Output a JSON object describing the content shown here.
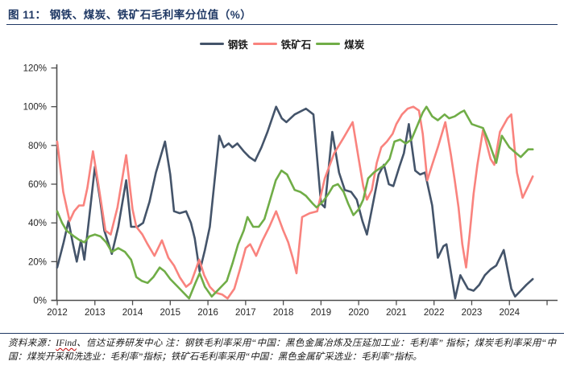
{
  "title": "图 11： 钢铁、煤炭、铁矿石毛利率分位值（%）",
  "legend": [
    {
      "id": "steel",
      "label": "钢铁",
      "color": "#44546a"
    },
    {
      "id": "iron-ore",
      "label": "铁矿石",
      "color": "#f9837e"
    },
    {
      "id": "coal",
      "label": "煤炭",
      "color": "#70ad47"
    }
  ],
  "footer": {
    "prefix": "资料来源：",
    "link": "IFind",
    "rest": "、信达证券研发中心  注：钢铁毛利率采用“中国：黑色金属冶炼及压延加工业：毛利率” 指标；煤炭毛利率采用“中国：煤炭开采和洗选业：毛利率”指标；铁矿石毛利率采用“中国：黑色金属矿采选业：毛利率”指标。"
  },
  "chart_data": {
    "type": "line",
    "title": "图 11： 钢铁、煤炭、铁矿石毛利率分位值（%）",
    "xlabel": "",
    "ylabel": "",
    "ylim": [
      0,
      120
    ],
    "yticks": [
      "0%",
      "20%",
      "40%",
      "60%",
      "80%",
      "100%",
      "120%"
    ],
    "ytick_values": [
      0,
      20,
      40,
      60,
      80,
      100,
      120
    ],
    "xticks": [
      2012,
      2013,
      2014,
      2015,
      2016,
      2017,
      2018,
      2019,
      2020,
      2021,
      2022,
      2023,
      2024
    ],
    "x_unit": "year (monthly series)",
    "grid": false,
    "legend_position": "top-center",
    "axis_color": "#4d4d4d",
    "series": [
      {
        "name": "钢铁",
        "color": "#44546a",
        "points": [
          [
            2012.0,
            17
          ],
          [
            2012.17,
            30
          ],
          [
            2012.3,
            41
          ],
          [
            2012.42,
            29
          ],
          [
            2012.52,
            20
          ],
          [
            2012.63,
            31
          ],
          [
            2012.72,
            21
          ],
          [
            2012.85,
            43
          ],
          [
            2013.0,
            69
          ],
          [
            2013.13,
            53
          ],
          [
            2013.25,
            36
          ],
          [
            2013.45,
            24
          ],
          [
            2013.62,
            38
          ],
          [
            2013.83,
            62
          ],
          [
            2013.96,
            38
          ],
          [
            2014.13,
            38
          ],
          [
            2014.28,
            40
          ],
          [
            2014.45,
            51
          ],
          [
            2014.62,
            66
          ],
          [
            2014.86,
            82
          ],
          [
            2015.0,
            65
          ],
          [
            2015.1,
            46
          ],
          [
            2015.25,
            45
          ],
          [
            2015.42,
            46
          ],
          [
            2015.55,
            40
          ],
          [
            2015.65,
            32
          ],
          [
            2015.78,
            15
          ],
          [
            2015.92,
            26
          ],
          [
            2016.05,
            38
          ],
          [
            2016.3,
            85
          ],
          [
            2016.42,
            79
          ],
          [
            2016.55,
            81
          ],
          [
            2016.65,
            79
          ],
          [
            2016.78,
            81
          ],
          [
            2016.95,
            77
          ],
          [
            2017.1,
            74
          ],
          [
            2017.25,
            72
          ],
          [
            2017.42,
            79
          ],
          [
            2017.58,
            87
          ],
          [
            2017.81,
            100
          ],
          [
            2017.96,
            94
          ],
          [
            2018.08,
            92
          ],
          [
            2018.3,
            96
          ],
          [
            2018.6,
            99
          ],
          [
            2018.8,
            96
          ],
          [
            2019.0,
            50
          ],
          [
            2019.1,
            48
          ],
          [
            2019.3,
            87
          ],
          [
            2019.48,
            66
          ],
          [
            2019.63,
            57
          ],
          [
            2019.8,
            56
          ],
          [
            2019.95,
            52
          ],
          [
            2020.1,
            41
          ],
          [
            2020.22,
            34
          ],
          [
            2020.38,
            50
          ],
          [
            2020.53,
            65
          ],
          [
            2020.67,
            70
          ],
          [
            2020.8,
            60
          ],
          [
            2020.92,
            59
          ],
          [
            2021.08,
            69
          ],
          [
            2021.2,
            76
          ],
          [
            2021.33,
            91
          ],
          [
            2021.5,
            67
          ],
          [
            2021.63,
            65
          ],
          [
            2021.76,
            66
          ],
          [
            2021.95,
            49
          ],
          [
            2022.1,
            22
          ],
          [
            2022.25,
            28
          ],
          [
            2022.33,
            29
          ],
          [
            2022.56,
            1
          ],
          [
            2022.7,
            13
          ],
          [
            2022.9,
            6
          ],
          [
            2023.05,
            5
          ],
          [
            2023.2,
            8
          ],
          [
            2023.35,
            13
          ],
          [
            2023.5,
            16
          ],
          [
            2023.65,
            18
          ],
          [
            2023.85,
            26
          ],
          [
            2024.05,
            6
          ],
          [
            2024.15,
            2
          ],
          [
            2024.3,
            5
          ],
          [
            2024.45,
            8
          ],
          [
            2024.62,
            11
          ]
        ]
      },
      {
        "name": "铁矿石",
        "color": "#f9837e",
        "points": [
          [
            2012.0,
            82
          ],
          [
            2012.16,
            56
          ],
          [
            2012.33,
            41
          ],
          [
            2012.45,
            46
          ],
          [
            2012.58,
            49
          ],
          [
            2012.7,
            49
          ],
          [
            2012.8,
            58
          ],
          [
            2012.95,
            77
          ],
          [
            2013.1,
            59
          ],
          [
            2013.28,
            36
          ],
          [
            2013.42,
            34
          ],
          [
            2013.6,
            48
          ],
          [
            2013.83,
            75
          ],
          [
            2014.0,
            47
          ],
          [
            2014.1,
            38
          ],
          [
            2014.26,
            34
          ],
          [
            2014.4,
            29
          ],
          [
            2014.58,
            23
          ],
          [
            2014.78,
            31
          ],
          [
            2014.95,
            22
          ],
          [
            2015.1,
            18
          ],
          [
            2015.25,
            12
          ],
          [
            2015.42,
            7
          ],
          [
            2015.55,
            9
          ],
          [
            2015.77,
            21
          ],
          [
            2015.9,
            13
          ],
          [
            2016.05,
            7
          ],
          [
            2016.2,
            4
          ],
          [
            2016.38,
            3
          ],
          [
            2016.52,
            1
          ],
          [
            2016.7,
            6
          ],
          [
            2016.85,
            16
          ],
          [
            2017.0,
            27
          ],
          [
            2017.12,
            29
          ],
          [
            2017.28,
            23
          ],
          [
            2017.45,
            31
          ],
          [
            2017.63,
            38
          ],
          [
            2017.81,
            46
          ],
          [
            2018.0,
            36
          ],
          [
            2018.13,
            30
          ],
          [
            2018.25,
            22
          ],
          [
            2018.35,
            14
          ],
          [
            2018.5,
            43
          ],
          [
            2018.7,
            45
          ],
          [
            2018.9,
            46
          ],
          [
            2019.1,
            63
          ],
          [
            2019.35,
            76
          ],
          [
            2019.6,
            84
          ],
          [
            2019.84,
            92
          ],
          [
            2020.0,
            73
          ],
          [
            2020.12,
            59
          ],
          [
            2020.22,
            52
          ],
          [
            2020.35,
            57
          ],
          [
            2020.48,
            71
          ],
          [
            2020.6,
            79
          ],
          [
            2020.75,
            82
          ],
          [
            2020.9,
            86
          ],
          [
            2021.0,
            91
          ],
          [
            2021.15,
            96
          ],
          [
            2021.3,
            99
          ],
          [
            2021.45,
            100
          ],
          [
            2021.6,
            98
          ],
          [
            2021.7,
            86
          ],
          [
            2021.82,
            62
          ],
          [
            2021.95,
            70
          ],
          [
            2022.1,
            79
          ],
          [
            2022.3,
            92
          ],
          [
            2022.45,
            75
          ],
          [
            2022.55,
            62
          ],
          [
            2022.65,
            48
          ],
          [
            2022.75,
            29
          ],
          [
            2022.85,
            17
          ],
          [
            2022.95,
            35
          ],
          [
            2023.05,
            55
          ],
          [
            2023.15,
            70
          ],
          [
            2023.3,
            88
          ],
          [
            2023.5,
            73
          ],
          [
            2023.6,
            70
          ],
          [
            2023.75,
            87
          ],
          [
            2023.95,
            94
          ],
          [
            2024.05,
            96
          ],
          [
            2024.2,
            66
          ],
          [
            2024.35,
            53
          ],
          [
            2024.5,
            59
          ],
          [
            2024.62,
            64
          ]
        ]
      },
      {
        "name": "煤炭",
        "color": "#70ad47",
        "points": [
          [
            2012.0,
            46
          ],
          [
            2012.13,
            40
          ],
          [
            2012.25,
            36
          ],
          [
            2012.45,
            33
          ],
          [
            2012.6,
            31
          ],
          [
            2012.72,
            30
          ],
          [
            2012.85,
            33
          ],
          [
            2013.0,
            34
          ],
          [
            2013.15,
            33
          ],
          [
            2013.3,
            30
          ],
          [
            2013.45,
            25
          ],
          [
            2013.62,
            27
          ],
          [
            2013.8,
            25
          ],
          [
            2013.96,
            21
          ],
          [
            2014.1,
            12
          ],
          [
            2014.25,
            10
          ],
          [
            2014.4,
            9
          ],
          [
            2014.55,
            12
          ],
          [
            2014.72,
            17
          ],
          [
            2014.85,
            15
          ],
          [
            2015.0,
            11
          ],
          [
            2015.2,
            7
          ],
          [
            2015.35,
            4
          ],
          [
            2015.5,
            1
          ],
          [
            2015.67,
            9
          ],
          [
            2015.78,
            14
          ],
          [
            2015.92,
            7
          ],
          [
            2016.1,
            2
          ],
          [
            2016.3,
            6
          ],
          [
            2016.5,
            10
          ],
          [
            2016.65,
            19
          ],
          [
            2016.8,
            29
          ],
          [
            2016.95,
            36
          ],
          [
            2017.05,
            43
          ],
          [
            2017.2,
            38
          ],
          [
            2017.35,
            38
          ],
          [
            2017.5,
            42
          ],
          [
            2017.65,
            52
          ],
          [
            2017.8,
            62
          ],
          [
            2017.95,
            67
          ],
          [
            2018.1,
            65
          ],
          [
            2018.3,
            57
          ],
          [
            2018.45,
            56
          ],
          [
            2018.6,
            54
          ],
          [
            2018.78,
            50
          ],
          [
            2018.88,
            48
          ],
          [
            2019.05,
            51
          ],
          [
            2019.2,
            55
          ],
          [
            2019.32,
            59
          ],
          [
            2019.45,
            60
          ],
          [
            2019.6,
            56
          ],
          [
            2019.72,
            50
          ],
          [
            2019.86,
            44
          ],
          [
            2020.0,
            47
          ],
          [
            2020.12,
            52
          ],
          [
            2020.25,
            63
          ],
          [
            2020.4,
            66
          ],
          [
            2020.55,
            68
          ],
          [
            2020.7,
            70
          ],
          [
            2020.82,
            73
          ],
          [
            2020.95,
            82
          ],
          [
            2021.1,
            83
          ],
          [
            2021.25,
            81
          ],
          [
            2021.4,
            83
          ],
          [
            2021.55,
            90
          ],
          [
            2021.7,
            97
          ],
          [
            2021.8,
            100
          ],
          [
            2021.95,
            95
          ],
          [
            2022.1,
            93
          ],
          [
            2022.28,
            96
          ],
          [
            2022.4,
            94
          ],
          [
            2022.55,
            95
          ],
          [
            2022.7,
            97
          ],
          [
            2022.8,
            98
          ],
          [
            2023.0,
            91
          ],
          [
            2023.15,
            90
          ],
          [
            2023.3,
            89
          ],
          [
            2023.45,
            82
          ],
          [
            2023.65,
            71
          ],
          [
            2023.8,
            85
          ],
          [
            2024.0,
            79
          ],
          [
            2024.12,
            77
          ],
          [
            2024.3,
            74
          ],
          [
            2024.5,
            78
          ],
          [
            2024.62,
            78
          ]
        ]
      }
    ]
  }
}
